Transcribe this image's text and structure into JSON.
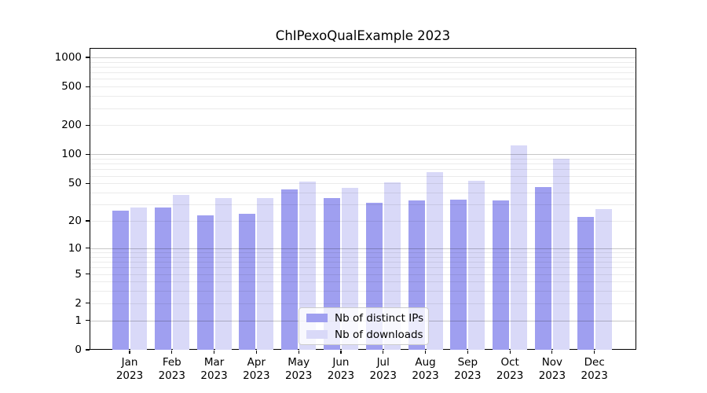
{
  "chart_data": {
    "type": "bar",
    "title": "ChIPexoQualExample 2023",
    "x_axis": {
      "categories": [
        "Jan",
        "Feb",
        "Mar",
        "Apr",
        "May",
        "Jun",
        "Jul",
        "Aug",
        "Sep",
        "Oct",
        "Nov",
        "Dec"
      ],
      "year_label": "2023"
    },
    "y_axis": {
      "scale": "log1p",
      "tick_labels": [
        "0",
        "1",
        "2",
        "5",
        "10",
        "20",
        "50",
        "100",
        "200",
        "500",
        "1000"
      ],
      "tick_values": [
        0,
        1,
        2,
        5,
        10,
        20,
        50,
        100,
        200,
        500,
        1000
      ],
      "ylim": [
        0,
        1260
      ],
      "grid": "horizontal"
    },
    "series": [
      {
        "name": "Nb of distinct IPs",
        "color": "#9f9ff0",
        "values": [
          26,
          28,
          23,
          24,
          43,
          35,
          31,
          33,
          34,
          33,
          46,
          22
        ]
      },
      {
        "name": "Nb of downloads",
        "color": "#d9d9f8",
        "values": [
          28,
          38,
          35,
          35,
          52,
          45,
          51,
          66,
          53,
          125,
          90,
          27
        ]
      }
    ],
    "legend_position": "bottom-center"
  },
  "colors": {
    "background": "#ffffff",
    "axis": "#000000",
    "grid_major": "rgba(0,0,0,0.22)",
    "grid_minor": "rgba(0,0,0,0.08)",
    "legend_border": "#cccccc"
  }
}
